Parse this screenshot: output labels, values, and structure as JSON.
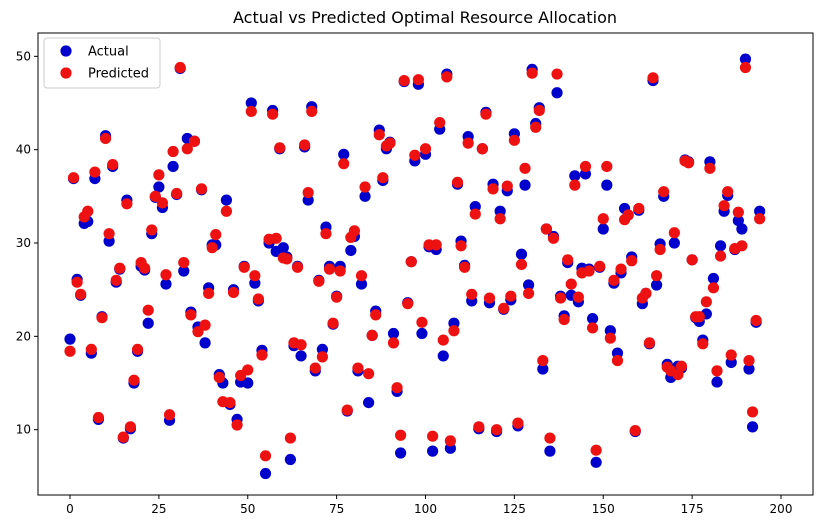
{
  "chart_data": {
    "type": "scatter",
    "title": "Actual vs Predicted Optimal Resource Allocation",
    "xlabel": "",
    "ylabel": "",
    "xlim": [
      -9,
      209
    ],
    "ylim": [
      3,
      52.5
    ],
    "xticks": [
      0,
      25,
      50,
      75,
      100,
      125,
      150,
      175,
      200
    ],
    "yticks": [
      10,
      20,
      30,
      40,
      50
    ],
    "grid": false,
    "legend_position": "top-left",
    "series": [
      {
        "name": "Actual",
        "color": "#0000cc",
        "values": [
          19.7,
          36.9,
          26.1,
          24.4,
          32.1,
          32.3,
          18.2,
          36.9,
          11.1,
          22.1,
          41.5,
          30.2,
          38.2,
          25.8,
          27.2,
          9.1,
          34.6,
          10.1,
          15.0,
          18.4,
          27.5,
          27.1,
          21.4,
          31.0,
          34.9,
          36.0,
          33.8,
          25.6,
          11.0,
          38.2,
          35.2,
          48.7,
          27.0,
          41.2,
          22.6,
          40.9,
          21.0,
          35.7,
          19.3,
          25.2,
          29.8,
          29.8,
          15.9,
          15.0,
          34.6,
          12.7,
          25.0,
          11.1,
          15.1,
          27.5,
          15.0,
          45.0,
          25.7,
          23.8,
          18.5,
          5.3,
          30.0,
          44.2,
          29.1,
          40.1,
          29.5,
          28.5,
          6.8,
          19.0,
          27.5,
          17.9,
          40.3,
          34.6,
          44.6,
          16.3,
          26.0,
          18.6,
          31.7,
          27.5,
          21.3,
          24.3,
          27.5,
          39.5,
          12.0,
          29.2,
          30.7,
          16.3,
          25.6,
          35.0,
          12.9,
          20.1,
          22.7,
          42.1,
          36.7,
          40.1,
          40.8,
          20.3,
          14.1,
          7.5,
          47.3,
          23.6,
          28.0,
          38.8,
          47.0,
          20.3,
          39.5,
          29.6,
          7.7,
          29.3,
          42.2,
          17.9,
          48.1,
          8.0,
          21.4,
          36.3,
          30.2,
          27.6,
          41.4,
          23.8,
          33.9,
          10.1,
          40.1,
          44.0,
          23.6,
          36.3,
          9.8,
          33.4,
          22.9,
          35.6,
          23.9,
          41.7,
          10.4,
          28.8,
          36.2,
          25.5,
          48.6,
          42.8,
          44.5,
          16.5,
          31.5,
          7.7,
          30.7,
          46.1,
          24.3,
          22.2,
          27.9,
          24.4,
          37.2,
          23.7,
          27.3,
          37.4,
          27.2,
          21.9,
          6.5,
          27.4,
          31.5,
          36.2,
          20.6,
          25.7,
          18.2,
          26.8,
          33.7,
          33.0,
          28.5,
          9.8,
          33.5,
          23.5,
          24.6,
          19.2,
          47.4,
          25.5,
          29.9,
          35.0,
          17.0,
          15.6,
          30.0,
          16.8,
          16.6,
          38.9,
          38.7,
          28.2,
          22.0,
          21.6,
          19.6,
          22.4,
          38.7,
          26.2,
          15.1,
          29.7,
          33.4,
          35.1,
          17.2,
          29.3,
          32.4,
          31.5,
          49.7,
          16.5,
          10.3,
          21.5,
          33.4
        ]
      },
      {
        "name": "Predicted",
        "color": "#ee1111",
        "values": [
          18.4,
          37.0,
          25.8,
          24.5,
          32.8,
          33.4,
          18.6,
          37.6,
          11.3,
          22.0,
          41.2,
          31.0,
          38.4,
          26.0,
          27.3,
          9.2,
          34.2,
          10.3,
          15.3,
          18.6,
          27.9,
          27.3,
          22.8,
          31.4,
          35.0,
          37.3,
          34.3,
          26.6,
          11.6,
          39.8,
          35.3,
          48.8,
          27.9,
          40.1,
          22.3,
          40.9,
          20.5,
          35.8,
          21.2,
          24.6,
          29.5,
          30.9,
          15.6,
          13.0,
          33.4,
          12.9,
          24.7,
          10.5,
          15.8,
          27.4,
          16.4,
          44.1,
          26.5,
          24.0,
          18.0,
          7.2,
          30.4,
          43.8,
          30.5,
          40.2,
          28.4,
          28.3,
          9.1,
          19.3,
          27.4,
          19.1,
          40.5,
          35.4,
          44.1,
          16.6,
          25.9,
          17.8,
          31.0,
          27.2,
          21.4,
          24.2,
          27.0,
          38.5,
          12.1,
          30.6,
          31.3,
          16.6,
          26.5,
          36.0,
          16.0,
          20.1,
          22.3,
          41.6,
          37.0,
          40.4,
          40.7,
          19.3,
          14.5,
          9.4,
          47.4,
          23.5,
          28.0,
          39.4,
          47.5,
          21.5,
          40.1,
          29.8,
          9.3,
          29.8,
          42.9,
          19.6,
          47.8,
          8.8,
          20.6,
          36.5,
          29.7,
          27.4,
          40.7,
          24.5,
          33.1,
          10.3,
          40.1,
          43.8,
          24.1,
          35.8,
          10.0,
          32.6,
          23.0,
          36.1,
          24.3,
          41.0,
          10.7,
          27.7,
          38.0,
          24.6,
          48.2,
          42.4,
          44.2,
          17.4,
          31.5,
          9.1,
          30.5,
          48.1,
          24.1,
          21.8,
          28.2,
          25.6,
          36.2,
          24.2,
          26.8,
          38.2,
          27.0,
          20.9,
          7.8,
          27.5,
          32.6,
          38.2,
          19.8,
          26.0,
          17.4,
          27.2,
          32.5,
          33.0,
          28.1,
          9.9,
          33.7,
          24.1,
          24.6,
          19.3,
          47.7,
          26.5,
          29.3,
          35.5,
          16.7,
          16.3,
          31.1,
          15.9,
          16.8,
          38.8,
          38.6,
          28.2,
          22.1,
          22.1,
          19.2,
          23.7,
          38.0,
          25.2,
          16.3,
          28.6,
          34.0,
          35.5,
          18.0,
          29.4,
          33.3,
          29.7,
          48.8,
          17.4,
          11.9,
          21.7,
          32.6
        ]
      }
    ]
  }
}
